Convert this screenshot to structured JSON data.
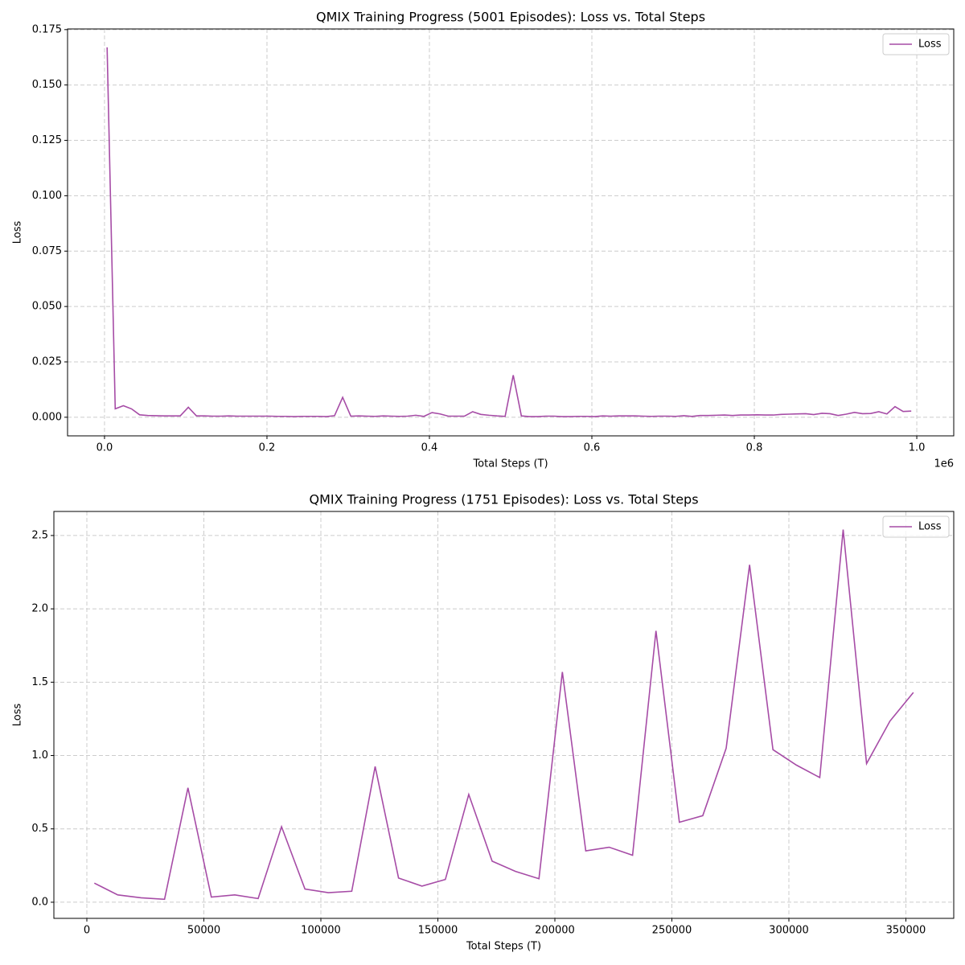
{
  "chart_data": [
    {
      "type": "line",
      "title": "QMIX Training Progress (5001 Episodes): Loss vs. Total Steps",
      "x_label": "Total Steps (T)",
      "y_label": "Loss",
      "x_offset_label": "1e6",
      "x": [
        3200,
        13200,
        23200,
        33200,
        43200,
        53200,
        63200,
        73200,
        83200,
        93200,
        103200,
        113200,
        123200,
        133200,
        143200,
        153200,
        163200,
        173200,
        183200,
        193200,
        203200,
        213200,
        223200,
        233200,
        243200,
        253200,
        263200,
        273200,
        283200,
        293200,
        303200,
        313200,
        323200,
        333200,
        343200,
        353200,
        363200,
        373200,
        383200,
        393200,
        403200,
        413200,
        423200,
        433200,
        443200,
        453200,
        463200,
        473200,
        483200,
        493200,
        503200,
        513200,
        523200,
        533200,
        543200,
        553200,
        563200,
        573200,
        583200,
        593200,
        603200,
        613200,
        623200,
        633200,
        643200,
        653200,
        663200,
        673200,
        683200,
        693200,
        703200,
        713200,
        723200,
        733200,
        743200,
        753200,
        763200,
        773200,
        783200,
        793200,
        803200,
        813200,
        823200,
        833200,
        843200,
        853200,
        863200,
        873200,
        883200,
        893200,
        903200,
        913200,
        923200,
        933200,
        943200,
        953200,
        963200,
        973200,
        983200,
        993200
      ],
      "series": [
        {
          "name": "Loss",
          "color": "#a64ca6",
          "values": [
            0.167,
            0.0038,
            0.0052,
            0.0038,
            0.0011,
            0.0008,
            0.0007,
            0.0006,
            0.0006,
            0.0006,
            0.0045,
            0.0006,
            0.0006,
            0.0005,
            0.0005,
            0.0006,
            0.0005,
            0.0005,
            0.0005,
            0.0005,
            0.0005,
            0.0004,
            0.0004,
            0.0003,
            0.0004,
            0.0004,
            0.0004,
            0.0003,
            0.0007,
            0.009,
            0.0005,
            0.0006,
            0.0005,
            0.0004,
            0.0006,
            0.0005,
            0.0004,
            0.0005,
            0.0009,
            0.0004,
            0.0021,
            0.0015,
            0.0005,
            0.0005,
            0.0005,
            0.0025,
            0.0013,
            0.0009,
            0.0006,
            0.0004,
            0.019,
            0.0006,
            0.0003,
            0.0003,
            0.0005,
            0.0005,
            0.0003,
            0.0003,
            0.0004,
            0.0004,
            0.0003,
            0.0006,
            0.0005,
            0.0006,
            0.0006,
            0.0006,
            0.0005,
            0.0004,
            0.0005,
            0.0005,
            0.0004,
            0.0007,
            0.0004,
            0.0008,
            0.0008,
            0.0009,
            0.001,
            0.0008,
            0.001,
            0.001,
            0.0011,
            0.001,
            0.001,
            0.0013,
            0.0014,
            0.0015,
            0.0016,
            0.0012,
            0.0018,
            0.0016,
            0.0008,
            0.0014,
            0.0022,
            0.0016,
            0.0017,
            0.0025,
            0.0015,
            0.0048,
            0.0026,
            0.0028
          ]
        }
      ],
      "xlim": [
        -45500,
        1045500
      ],
      "ylim": [
        -0.0084,
        0.1753
      ],
      "xticks": [
        {
          "value": 0,
          "label": "0.0"
        },
        {
          "value": 200000,
          "label": "0.2"
        },
        {
          "value": 400000,
          "label": "0.4"
        },
        {
          "value": 600000,
          "label": "0.6"
        },
        {
          "value": 800000,
          "label": "0.8"
        },
        {
          "value": 1000000,
          "label": "1.0"
        }
      ],
      "yticks": [
        {
          "value": 0,
          "label": "0.000"
        },
        0.025,
        {
          "value": 0.05,
          "label": "0.050"
        },
        0.075,
        {
          "value": 0.1,
          "label": "0.100"
        },
        0.125,
        {
          "value": 0.15,
          "label": "0.150"
        },
        0.175
      ],
      "grid": true,
      "legend": "upper right"
    },
    {
      "type": "line",
      "title": "QMIX Training Progress (1751 Episodes): Loss vs. Total Steps",
      "x_label": "Total Steps (T)",
      "y_label": "Loss",
      "x": [
        3200,
        13200,
        23200,
        33200,
        43200,
        53200,
        63200,
        73200,
        83200,
        93200,
        103200,
        113200,
        123200,
        133200,
        143200,
        153200,
        163200,
        173200,
        183200,
        193200,
        203200,
        213200,
        223200,
        233200,
        243200,
        253200,
        263200,
        273200,
        283200,
        293200,
        303200,
        313200,
        323200,
        333200,
        343200,
        353200
      ],
      "series": [
        {
          "name": "Loss",
          "color": "#a64ca6",
          "values": [
            0.13,
            0.05,
            0.03,
            0.02,
            0.78,
            0.035,
            0.05,
            0.025,
            0.515,
            0.09,
            0.065,
            0.075,
            0.925,
            0.165,
            0.11,
            0.155,
            0.735,
            0.28,
            0.21,
            0.16,
            1.57,
            0.35,
            0.375,
            0.32,
            1.85,
            0.545,
            0.59,
            1.05,
            2.3,
            1.04,
            0.935,
            0.85,
            2.54,
            0.945,
            1.235,
            1.43
          ]
        }
      ],
      "xlim": [
        -14090,
        370450
      ],
      "ylim": [
        -0.11,
        2.664
      ],
      "xticks": [
        0,
        50000,
        100000,
        150000,
        200000,
        250000,
        300000,
        350000
      ],
      "yticks": [
        {
          "value": 0,
          "label": "0.0"
        },
        0.5,
        {
          "value": 1,
          "label": "1.0"
        },
        1.5,
        {
          "value": 2,
          "label": "2.0"
        },
        2.5
      ],
      "grid": true,
      "legend": "upper right"
    }
  ]
}
